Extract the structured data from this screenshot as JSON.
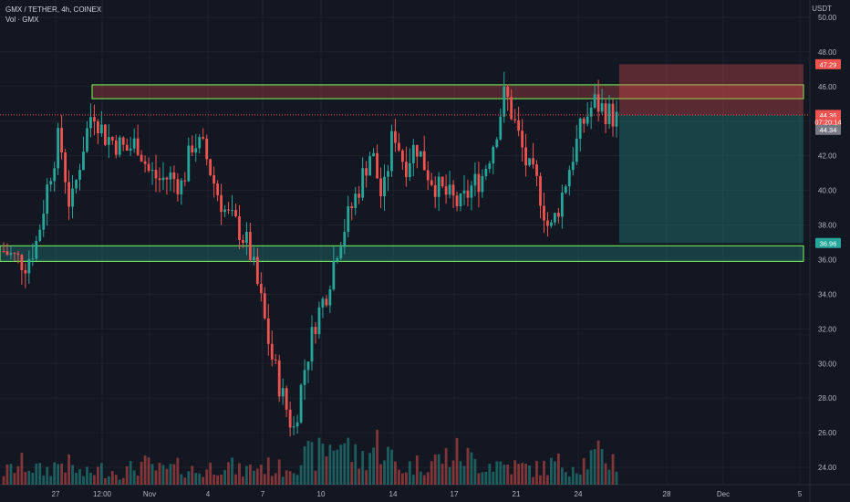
{
  "header": {
    "symbol_line": "GMX / TETHER, 4h, COINEX",
    "volume_line": "Vol · GMX",
    "currency": "USDT"
  },
  "colors": {
    "background": "#131722",
    "grid": "#1e222d",
    "up": "#26a69a",
    "down": "#ef5350",
    "zone_border": "#7cfc5c",
    "axis_text": "#b2b5be"
  },
  "chart_data": {
    "type": "candlestick",
    "y_axis": {
      "ylim": [
        23,
        51
      ],
      "ticks": [
        24,
        26,
        28,
        30,
        32,
        34,
        36,
        38,
        40,
        42,
        44,
        46,
        48,
        50
      ],
      "tick_labels": [
        "24.00",
        "26.00",
        "28.00",
        "30.00",
        "32.00",
        "34.00",
        "36.00",
        "38.00",
        "40.00",
        "42.00",
        "44.00",
        "46.00",
        "48.00",
        "50.00"
      ]
    },
    "x_axis": {
      "tick_labels": [
        "27",
        "12:00",
        "Nov",
        "4",
        "7",
        "10",
        "14",
        "17",
        "21",
        "24",
        "28",
        "Dec",
        "5"
      ]
    },
    "price_tags": [
      {
        "label": "47.29",
        "value": 47.29,
        "color": "#ef5350"
      },
      {
        "label": "44.36",
        "value": 44.36,
        "color": "#ef5350"
      },
      {
        "label": "07:20:14",
        "value": 43.95,
        "color": "#ef5350"
      },
      {
        "label": "44.34",
        "value": 43.5,
        "color": "#787b86"
      },
      {
        "label": "36.96",
        "value": 36.96,
        "color": "#26a69a"
      }
    ],
    "zones": [
      {
        "role": "resistance",
        "low": 45.3,
        "high": 46.1
      },
      {
        "role": "support",
        "low": 35.9,
        "high": 36.8
      }
    ],
    "position": {
      "entry": 44.36,
      "stop": 47.29,
      "target": 36.96
    },
    "price_path": [
      36.5,
      36.1,
      35.8,
      37.1,
      40.5,
      43.2,
      38.8,
      42.2,
      44.8,
      43.2,
      42.8,
      42.3,
      42.8,
      41.1,
      40.6,
      40.8,
      40.3,
      42.9,
      42.3,
      40.2,
      38.6,
      37.9,
      36.7,
      33.9,
      30.5,
      28.2,
      26.1,
      29.7,
      32.5,
      34.2,
      36.9,
      38.6,
      40.4,
      42.4,
      39.3,
      43.6,
      41.4,
      42.7,
      41.1,
      40.1,
      39.6,
      39.1,
      40.2,
      40.9,
      42.9,
      45.7,
      43.6,
      41.3,
      40.2,
      37.5,
      39.5,
      41.9,
      43.9,
      45.1,
      44.6,
      44.1
    ],
    "volume_path": [
      3.2,
      5.5,
      3.4,
      6.1,
      2.6,
      4.1,
      3.1,
      5.4,
      3.6,
      4.6,
      3.1,
      6.1,
      3.4,
      5.1,
      4.1,
      6.6,
      8.0,
      12.0,
      6.1,
      11.2,
      4.1,
      5.4,
      6.6,
      8.2,
      5.6,
      5.5,
      4.6,
      4.1,
      5.5,
      5.1,
      7.5,
      6.1
    ]
  }
}
